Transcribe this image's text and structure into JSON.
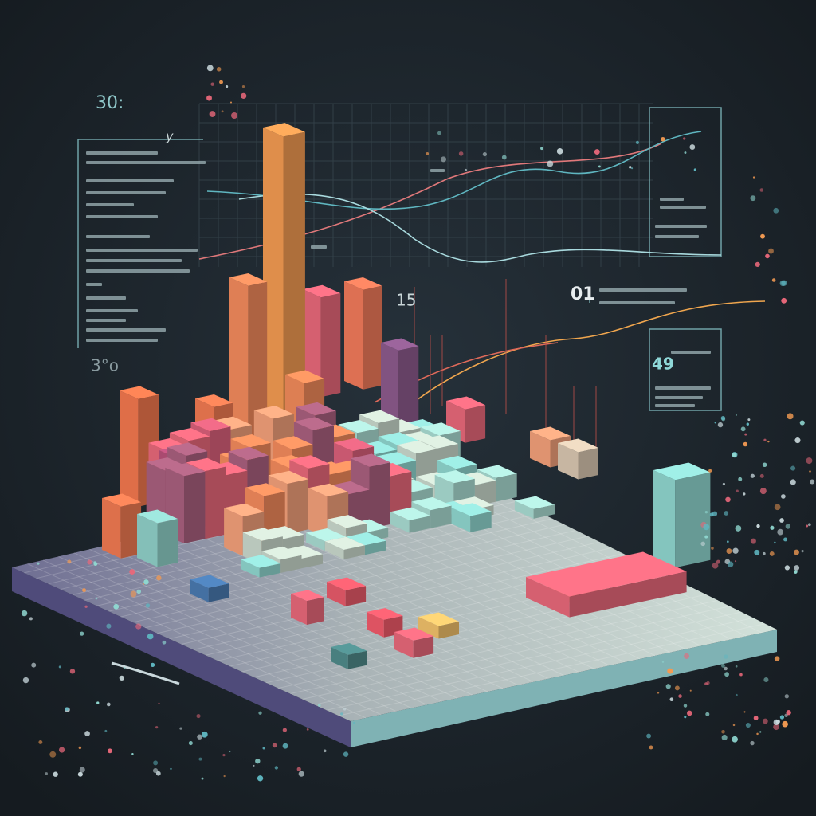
{
  "annotations": [
    "30:",
    "y",
    "3°o",
    "01",
    "15",
    "49"
  ]
}
